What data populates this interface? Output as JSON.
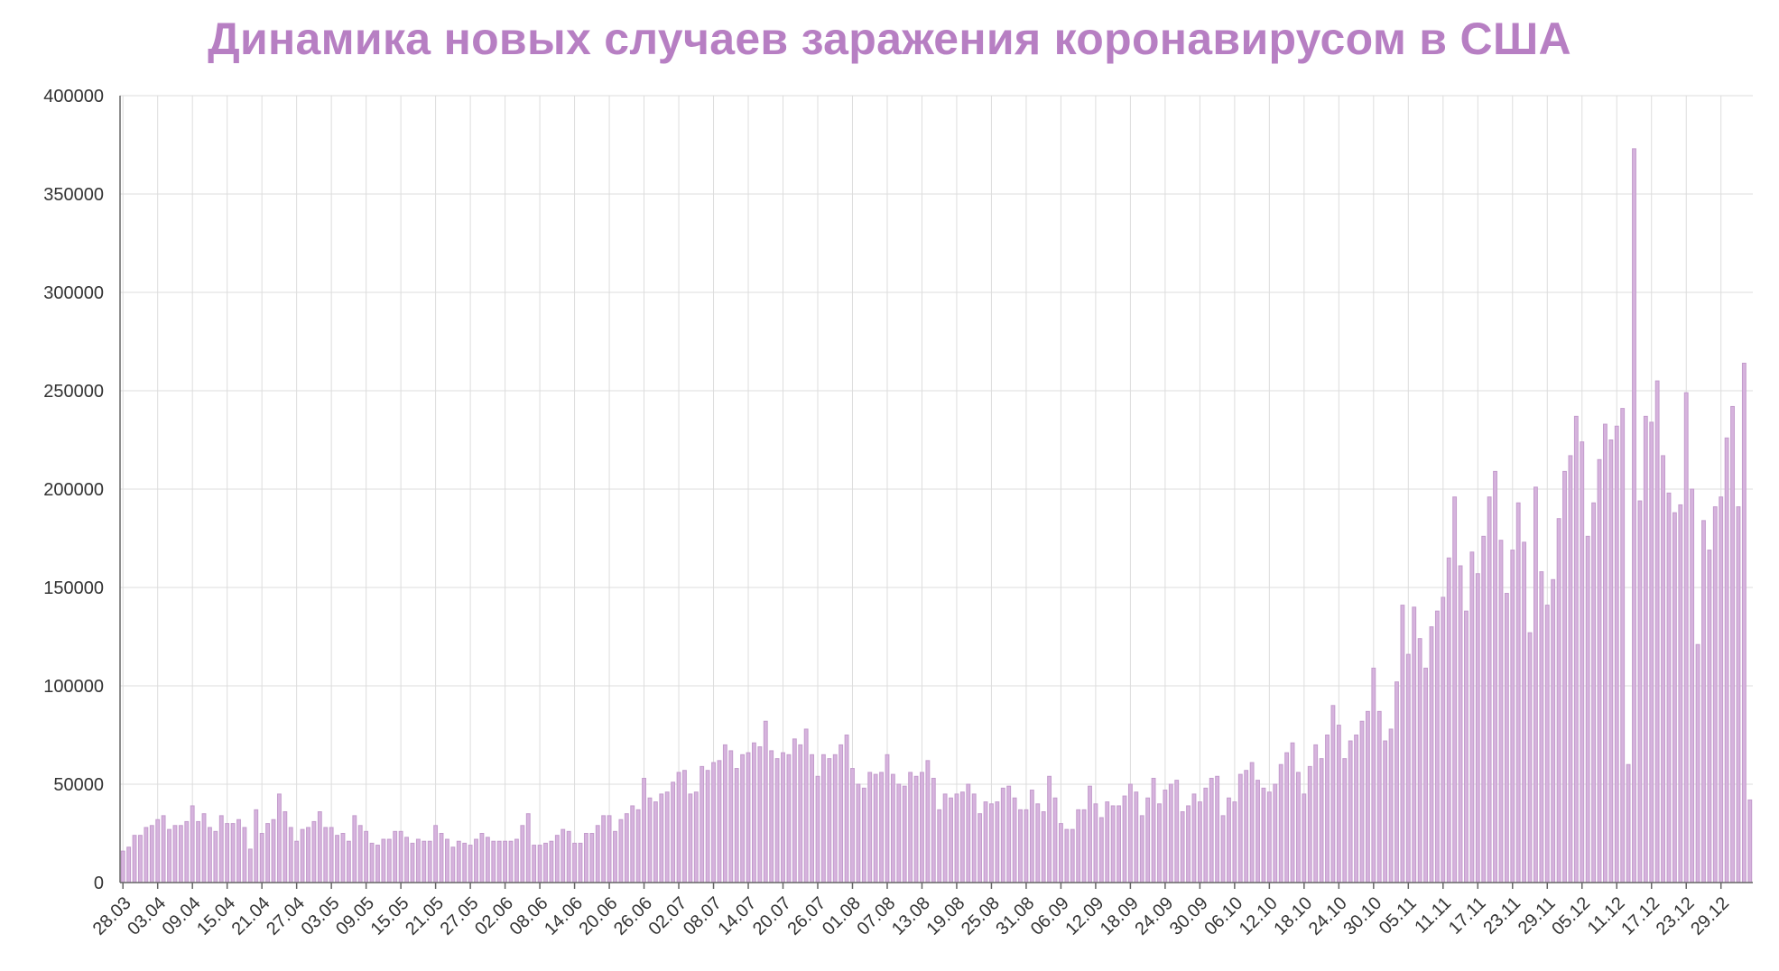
{
  "chart_data": {
    "type": "bar",
    "title": "Динамика новых случаев заражения коронавирусом в США",
    "xlabel": "",
    "ylabel": "",
    "ylim": [
      0,
      400000
    ],
    "yticks": [
      0,
      50000,
      100000,
      150000,
      200000,
      250000,
      300000,
      350000,
      400000
    ],
    "ytick_labels": [
      "0",
      "50000",
      "100000",
      "150000",
      "200000",
      "250000",
      "300000",
      "350000",
      "400000"
    ],
    "grid": true,
    "legend": "none",
    "bar_color": "#d6b3dd",
    "title_color": "#b77fc3",
    "x_tick_labels": [
      "28.03",
      "03.04",
      "09.04",
      "15.04",
      "21.04",
      "27.04",
      "03.05",
      "09.05",
      "15.05",
      "21.05",
      "27.05",
      "02.06",
      "08.06",
      "14.06",
      "20.06",
      "26.06",
      "02.07",
      "08.07",
      "14.07",
      "20.07",
      "26.07",
      "01.08",
      "07.08",
      "13.08",
      "19.08",
      "25.08",
      "31.08",
      "06.09",
      "12.09",
      "18.09",
      "24.09",
      "30.09",
      "06.10",
      "12.10",
      "18.10",
      "24.10",
      "30.10",
      "05.11",
      "11.11",
      "17.11",
      "23.11",
      "29.11",
      "05.12",
      "11.12",
      "17.12",
      "23.12",
      "29.12"
    ],
    "tick_every": 6,
    "values": [
      16000,
      18000,
      24000,
      24000,
      28000,
      29000,
      32000,
      34000,
      27000,
      29000,
      29000,
      31000,
      39000,
      31000,
      35000,
      28000,
      26000,
      34000,
      30000,
      30000,
      32000,
      28000,
      17000,
      37000,
      25000,
      30000,
      32000,
      45000,
      36000,
      28000,
      21000,
      27000,
      28000,
      31000,
      36000,
      28000,
      28000,
      24000,
      25000,
      21000,
      34000,
      29000,
      26000,
      20000,
      19000,
      22000,
      22000,
      26000,
      26000,
      23000,
      20000,
      22000,
      21000,
      21000,
      29000,
      25000,
      22000,
      18000,
      21000,
      20000,
      19000,
      22000,
      25000,
      23000,
      21000,
      21000,
      21000,
      21000,
      22000,
      29000,
      35000,
      19000,
      19000,
      20000,
      21000,
      24000,
      27000,
      26000,
      20000,
      20000,
      25000,
      25000,
      29000,
      34000,
      34000,
      26000,
      32000,
      35000,
      39000,
      37000,
      53000,
      43000,
      41000,
      45000,
      46000,
      51000,
      56000,
      57000,
      45000,
      46000,
      59000,
      57000,
      61000,
      62000,
      70000,
      67000,
      58000,
      65000,
      66000,
      71000,
      69000,
      82000,
      67000,
      63000,
      66000,
      65000,
      73000,
      70000,
      78000,
      65000,
      54000,
      65000,
      63000,
      65000,
      70000,
      75000,
      58000,
      50000,
      48000,
      56000,
      55000,
      56000,
      65000,
      55000,
      50000,
      49000,
      56000,
      54000,
      56000,
      62000,
      53000,
      37000,
      45000,
      43000,
      45000,
      46000,
      50000,
      45000,
      35000,
      41000,
      40000,
      41000,
      48000,
      49000,
      43000,
      37000,
      37000,
      47000,
      40000,
      36000,
      54000,
      43000,
      30000,
      27000,
      27000,
      37000,
      37000,
      49000,
      40000,
      33000,
      41000,
      39000,
      39000,
      44000,
      50000,
      46000,
      34000,
      43000,
      53000,
      40000,
      47000,
      50000,
      52000,
      36000,
      39000,
      45000,
      41000,
      48000,
      53000,
      54000,
      34000,
      43000,
      41000,
      55000,
      57000,
      61000,
      52000,
      48000,
      46000,
      50000,
      60000,
      66000,
      71000,
      56000,
      45000,
      59000,
      70000,
      63000,
      75000,
      90000,
      80000,
      63000,
      72000,
      75000,
      82000,
      87000,
      109000,
      87000,
      72000,
      78000,
      102000,
      141000,
      116000,
      140000,
      124000,
      109000,
      130000,
      138000,
      145000,
      165000,
      196000,
      161000,
      138000,
      168000,
      157000,
      176000,
      196000,
      209000,
      174000,
      147000,
      169000,
      193000,
      173000,
      127000,
      201000,
      158000,
      141000,
      154000,
      185000,
      209000,
      217000,
      237000,
      224000,
      176000,
      193000,
      215000,
      233000,
      225000,
      232000,
      241000,
      60000,
      373000,
      194000,
      237000,
      234000,
      255000,
      217000,
      198000,
      188000,
      192000,
      249000,
      200000,
      121000,
      184000,
      169000,
      191000,
      196000,
      226000,
      242000,
      191000,
      264000,
      42000
    ]
  }
}
